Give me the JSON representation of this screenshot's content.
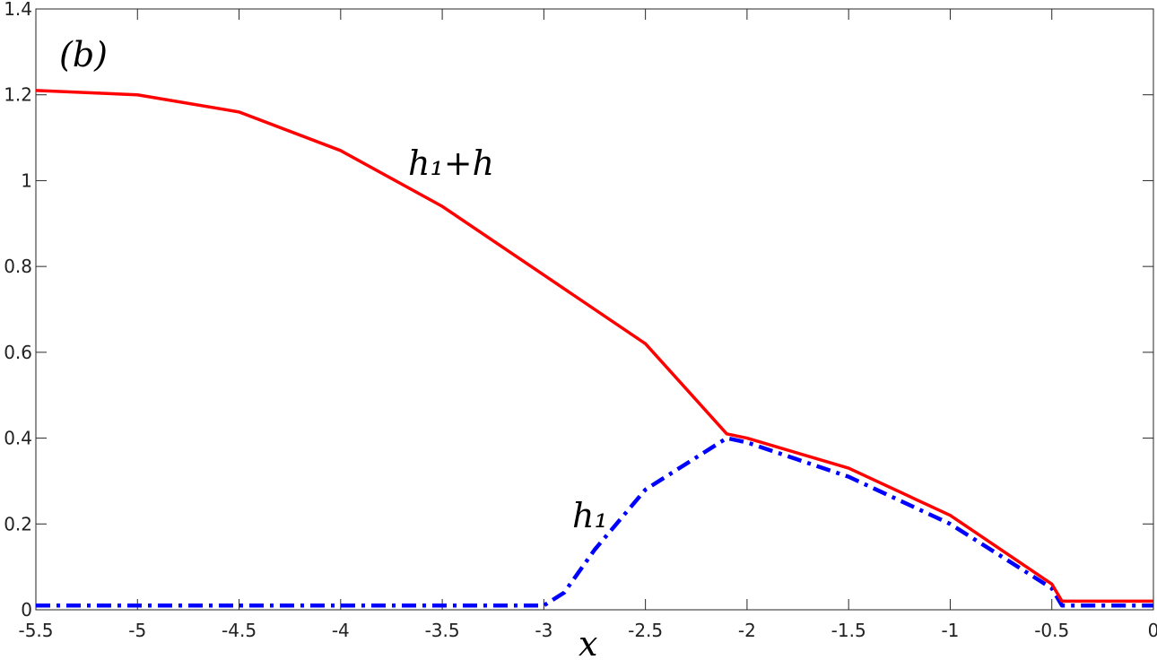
{
  "chart_data": {
    "type": "line",
    "xlabel": "x",
    "annotations": [
      "(b)",
      "h₁+h",
      "h₁"
    ],
    "xlim": [
      -5.5,
      0
    ],
    "xticks": [
      -5.5,
      -5,
      -4.5,
      -4,
      -3.5,
      -3,
      -2.5,
      -2,
      -1.5,
      -1,
      -0.5,
      0
    ],
    "ylim": [
      0,
      1.4
    ],
    "yticks": [
      0,
      0.2,
      0.4,
      0.6,
      0.8,
      1,
      1.2,
      1.4
    ],
    "grid": false,
    "series": [
      {
        "color": "#ff0000",
        "style": "solid",
        "x": [
          -5.5,
          -5,
          -4.5,
          -4,
          -3.5,
          -3,
          -2.5,
          -2.1,
          -2,
          -1.5,
          -1,
          -0.5,
          -0.45,
          0
        ],
        "values": [
          1.21,
          1.2,
          1.16,
          1.07,
          0.94,
          0.78,
          0.62,
          0.41,
          0.4,
          0.33,
          0.22,
          0.06,
          0.02,
          0.02
        ]
      },
      {
        "color": "#0000ff",
        "style": "dashdot",
        "x": [
          -5.5,
          -3,
          -2.9,
          -2.75,
          -2.5,
          -2.1,
          -2,
          -1.5,
          -1,
          -0.5,
          -0.45,
          0
        ],
        "values": [
          0.01,
          0.01,
          0.04,
          0.14,
          0.28,
          0.4,
          0.39,
          0.31,
          0.2,
          0.05,
          0.01,
          0.01
        ]
      }
    ]
  }
}
